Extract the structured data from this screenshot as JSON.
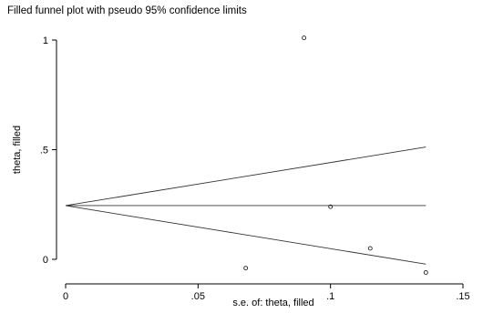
{
  "chart_data": {
    "type": "scatter",
    "title": "Filled funnel plot with pseudo 95% confidence limits",
    "xlabel": "s.e. of: theta, filled",
    "ylabel": "theta, filled",
    "xlim": [
      0,
      0.15
    ],
    "ylim": [
      0,
      1
    ],
    "xticks": [
      0,
      0.05,
      0.1,
      0.15
    ],
    "xtick_labels": [
      "0",
      ".05",
      ".1",
      ".15"
    ],
    "yticks": [
      0,
      0.5,
      1
    ],
    "ytick_labels": [
      "0",
      ".5",
      "1"
    ],
    "grid": false,
    "legend": null,
    "series": [
      {
        "points": [
          {
            "x": 0.09,
            "y": 1.01
          },
          {
            "x": 0.1,
            "y": 0.24
          },
          {
            "x": 0.115,
            "y": 0.05
          },
          {
            "x": 0.068,
            "y": -0.04
          },
          {
            "x": 0.136,
            "y": -0.06
          }
        ]
      }
    ],
    "lines": {
      "pooled_estimate": 0.245,
      "se_max": 0.136,
      "upper_limit_end": 0.512,
      "lower_limit_end": -0.022
    }
  }
}
